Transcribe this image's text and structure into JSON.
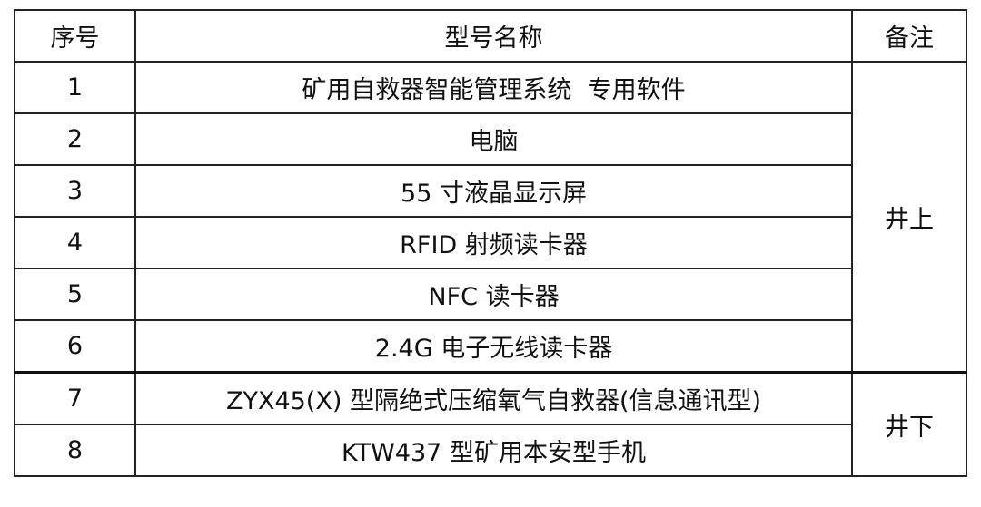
{
  "table": {
    "headers": [
      "序号",
      "型号名称",
      "备注"
    ],
    "rows": [
      {
        "no": "1",
        "name": "矿用自救器智能管理系统  专用软件"
      },
      {
        "no": "2",
        "name": "电脑"
      },
      {
        "no": "3",
        "name": "55 寸液晶显示屏"
      },
      {
        "no": "4",
        "name": "RFID 射频读卡器"
      },
      {
        "no": "5",
        "name": "NFC 读卡器"
      },
      {
        "no": "6",
        "name": "2.4G 电子无线读卡器"
      },
      {
        "no": "7",
        "name": "ZYX45(X) 型隔绝式压缩氧气自救器(信息通讯型)"
      },
      {
        "no": "8",
        "name": "KTW437 型矿用本安型手机"
      }
    ],
    "notes": [
      "井上",
      "井下"
    ]
  }
}
